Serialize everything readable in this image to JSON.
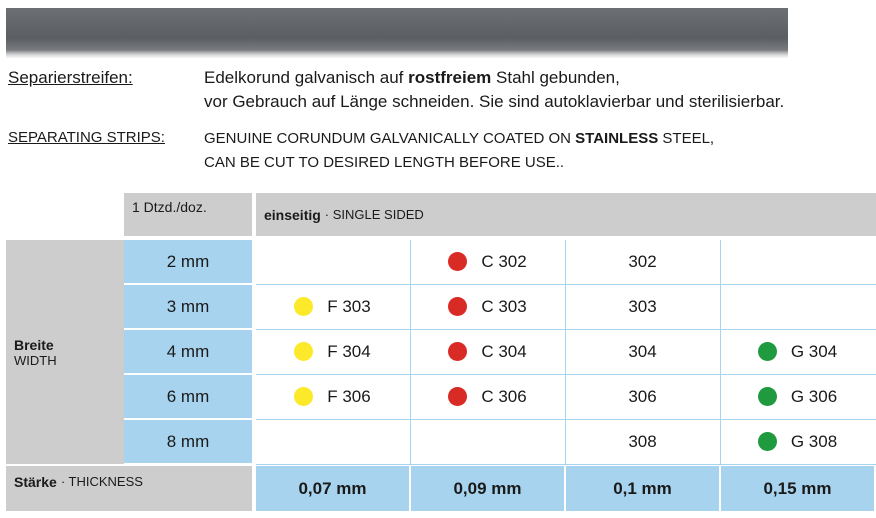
{
  "banner": "",
  "german": {
    "label": "Separierstreifen:",
    "line1_pre": "Edelkorund galvanisch auf ",
    "line1_bold": "rostfreiem",
    "line1_post": " Stahl gebunden,",
    "line2": "vor Gebrauch auf Länge schneiden. Sie sind autoklavierbar und sterilisierbar."
  },
  "english": {
    "label": "SEPARATING STRIPS:",
    "line1_pre": "GENUINE CORUNDUM GALVANICALLY COATED ON ",
    "line1_bold": "STAINLESS",
    "line1_post": " STEEL,",
    "line2": "CAN BE CUT TO DESIRED LENGTH BEFORE USE.."
  },
  "table": {
    "pack_header": "1 Dtzd./doz.",
    "side_header_bold": "einseitig",
    "side_header_rest": " · SINGLE SIDED",
    "width_label": "Breite",
    "width_label_en": "WIDTH",
    "thickness_label": "Stärke",
    "thickness_label_en": " · THICKNESS",
    "widths": [
      "2 mm",
      "3 mm",
      "4 mm",
      "6 mm",
      "8 mm"
    ],
    "thicknesses": [
      "0,07 mm",
      "0,09 mm",
      "0,1 mm",
      "0,15 mm"
    ],
    "colors": {
      "yellow": "#fce92a",
      "red": "#d92b25",
      "green": "#1f9a3f"
    },
    "rows": [
      {
        "f": "",
        "c": "C 302",
        "n": "302",
        "g": ""
      },
      {
        "f": "F 303",
        "c": "C 303",
        "n": "303",
        "g": ""
      },
      {
        "f": "F 304",
        "c": "C 304",
        "n": "304",
        "g": "G 304"
      },
      {
        "f": "F 306",
        "c": "C 306",
        "n": "306",
        "g": "G 306"
      },
      {
        "f": "",
        "c": "",
        "n": "308",
        "g": "G 308"
      }
    ]
  }
}
